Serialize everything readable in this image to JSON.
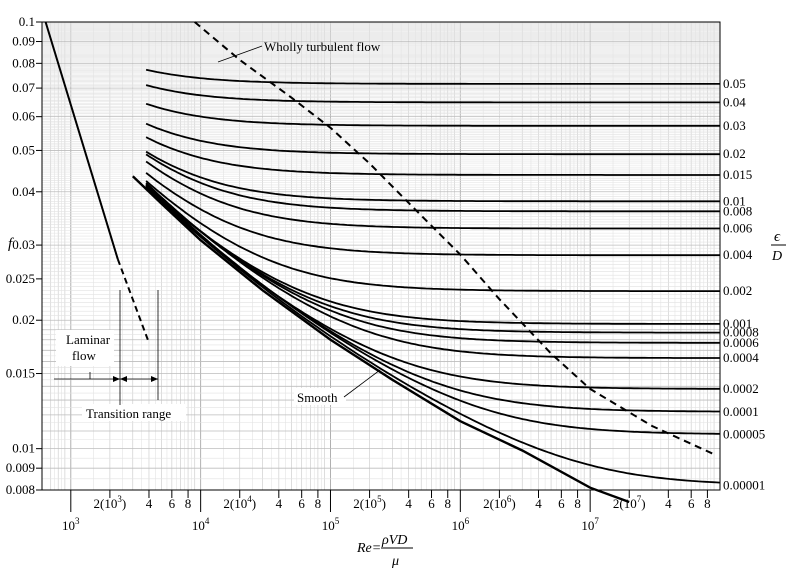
{
  "chart_data": {
    "type": "line",
    "title": "",
    "x_scale": "log",
    "y_scale": "log",
    "xlim": [
      600,
      100000000
    ],
    "ylim": [
      0.008,
      0.1
    ],
    "grid": true,
    "ylabel": "f",
    "xlabel": {
      "prefix": "Re=",
      "numerator": "ρVD",
      "denominator": "μ"
    },
    "right_axis_label": {
      "numerator": "ϵ",
      "denominator": "D"
    },
    "y_ticks": [
      {
        "value": 0.1,
        "label": "0.1"
      },
      {
        "value": 0.09,
        "label": "0.09"
      },
      {
        "value": 0.08,
        "label": "0.08"
      },
      {
        "value": 0.07,
        "label": "0.07"
      },
      {
        "value": 0.06,
        "label": "0.06"
      },
      {
        "value": 0.05,
        "label": "0.05"
      },
      {
        "value": 0.04,
        "label": "0.04"
      },
      {
        "value": 0.03,
        "label": "0.03"
      },
      {
        "value": 0.025,
        "label": "0.025"
      },
      {
        "value": 0.02,
        "label": "0.02"
      },
      {
        "value": 0.015,
        "label": "0.015"
      },
      {
        "value": 0.01,
        "label": "0.01"
      },
      {
        "value": 0.009,
        "label": "0.009"
      },
      {
        "value": 0.008,
        "label": "0.008"
      }
    ],
    "x_ticks_top": [
      {
        "value": 2000,
        "base": "2(10",
        "exp": "3",
        "close": ")"
      },
      {
        "value": 4000,
        "base": "4"
      },
      {
        "value": 6000,
        "base": "6"
      },
      {
        "value": 8000,
        "base": "8"
      },
      {
        "value": 20000,
        "base": "2(10",
        "exp": "4",
        "close": ")"
      },
      {
        "value": 40000,
        "base": "4"
      },
      {
        "value": 60000,
        "base": "6"
      },
      {
        "value": 80000,
        "base": "8"
      },
      {
        "value": 200000,
        "base": "2(10",
        "exp": "5",
        "close": ")"
      },
      {
        "value": 400000,
        "base": "4"
      },
      {
        "value": 600000,
        "base": "6"
      },
      {
        "value": 800000,
        "base": "8"
      },
      {
        "value": 2000000,
        "base": "2(10",
        "exp": "6",
        "close": ")"
      },
      {
        "value": 4000000,
        "base": "4"
      },
      {
        "value": 6000000,
        "base": "6"
      },
      {
        "value": 8000000,
        "base": "8"
      },
      {
        "value": 20000000,
        "base": "2(10",
        "exp": "7",
        "close": ")"
      },
      {
        "value": 40000000,
        "base": "4"
      },
      {
        "value": 60000000,
        "base": "6"
      },
      {
        "value": 80000000,
        "base": "8"
      }
    ],
    "x_ticks_bottom": [
      {
        "value": 1000,
        "base": "10",
        "exp": "3"
      },
      {
        "value": 10000,
        "base": "10",
        "exp": "4"
      },
      {
        "value": 100000,
        "base": "10",
        "exp": "5"
      },
      {
        "value": 1000000,
        "base": "10",
        "exp": "6"
      },
      {
        "value": 10000000,
        "base": "10",
        "exp": "7"
      }
    ],
    "series": [
      {
        "name": "0.05",
        "values": [
          0.0716,
          0.0716
        ]
      },
      {
        "name": "0.04",
        "values": [
          0.0648,
          0.0648
        ]
      },
      {
        "name": "0.03",
        "values": [
          0.0571,
          0.0571
        ]
      },
      {
        "name": "0.02",
        "values": [
          0.049,
          0.049
        ]
      },
      {
        "name": "0.015",
        "values": [
          0.0438,
          0.0438
        ]
      },
      {
        "name": "0.01",
        "values": [
          0.038,
          0.038
        ]
      },
      {
        "name": "0.008",
        "values": [
          0.036,
          0.036
        ]
      },
      {
        "name": "0.006",
        "values": [
          0.0328,
          0.0328
        ]
      },
      {
        "name": "0.004",
        "values": [
          0.0284,
          0.0284
        ]
      },
      {
        "name": "0.002",
        "values": [
          0.0234,
          0.0234
        ]
      },
      {
        "name": "0.001",
        "values": [
          0.0196,
          0.0196
        ]
      },
      {
        "name": "0.0008",
        "values": [
          0.0187,
          0.0187
        ]
      },
      {
        "name": "0.0006",
        "values": [
          0.0177,
          0.0177
        ]
      },
      {
        "name": "0.0004",
        "values": [
          0.0163,
          0.0163
        ]
      },
      {
        "name": "0.0002",
        "values": [
          0.0138,
          0.0138
        ]
      },
      {
        "name": "0.0001",
        "values": [
          0.0122,
          0.0122
        ]
      },
      {
        "name": "0.00005",
        "values": [
          0.0108,
          0.0108
        ]
      },
      {
        "name": "0.00001",
        "values": [
          0.0082,
          0.0082
        ]
      }
    ],
    "laminar_line": {
      "x": [
        640,
        2300
      ],
      "y": [
        0.1,
        0.0278
      ]
    },
    "laminar_dashed": {
      "x": [
        2300,
        4000
      ],
      "y": [
        0.0278,
        0.0177
      ]
    },
    "smooth_curve": {
      "x": [
        3000,
        5000,
        10000,
        30000,
        100000,
        300000,
        1000000,
        3000000,
        10000000,
        20000000
      ],
      "y": [
        0.0435,
        0.0375,
        0.0308,
        0.0235,
        0.018,
        0.0145,
        0.0116,
        0.0099,
        0.0081,
        0.0075
      ]
    },
    "wholly_turbulent_boundary": {
      "x": [
        9000,
        20000,
        50000,
        100000,
        200000,
        500000,
        1000000,
        2000000,
        5000000,
        10000000,
        30000000,
        90000000
      ],
      "y": [
        0.1,
        0.0815,
        0.0665,
        0.0565,
        0.0466,
        0.0352,
        0.0285,
        0.0224,
        0.0167,
        0.0138,
        0.0113,
        0.0097
      ]
    },
    "annotations": {
      "wholly_turbulent": "Wholly turbulent flow",
      "laminar_line1": "Laminar",
      "laminar_line2": "flow",
      "transition": "Transition range",
      "smooth": "Smooth"
    }
  }
}
